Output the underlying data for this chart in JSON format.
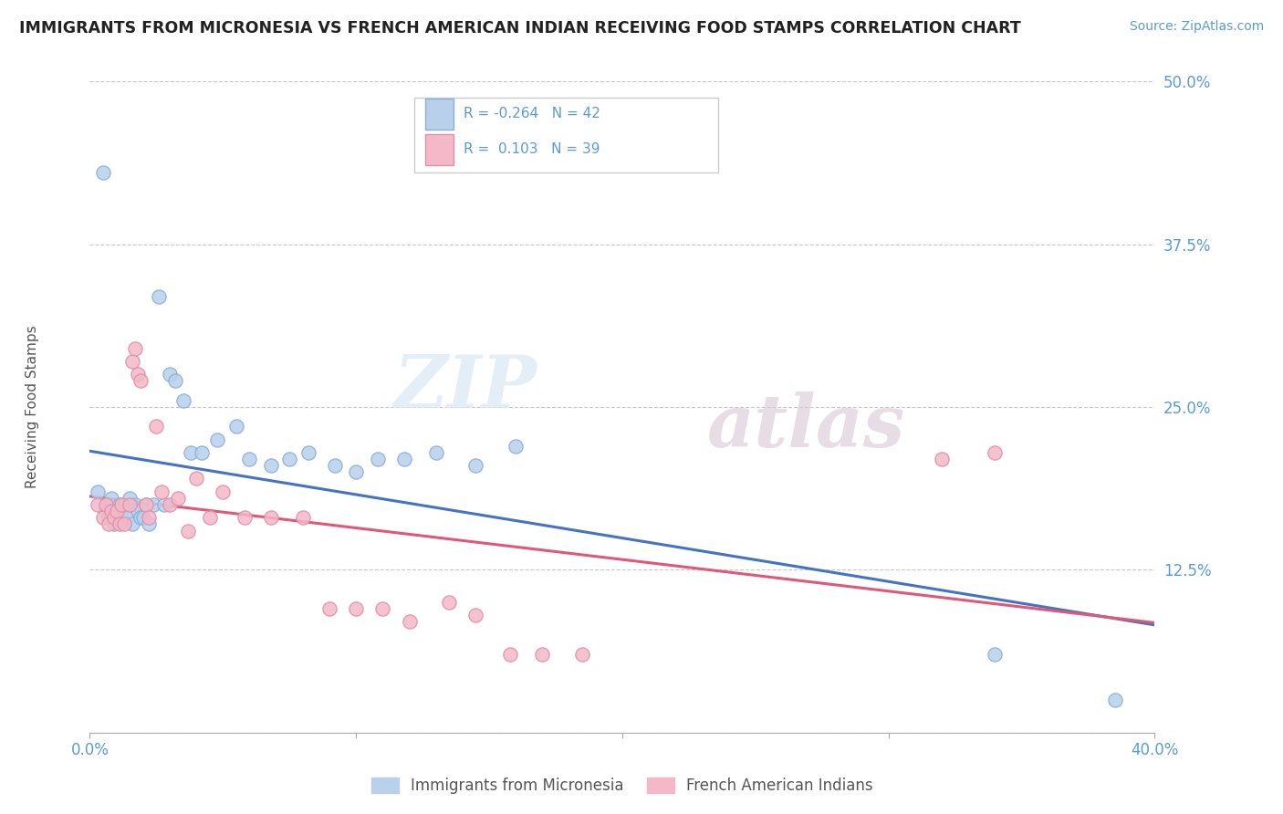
{
  "title": "IMMIGRANTS FROM MICRONESIA VS FRENCH AMERICAN INDIAN RECEIVING FOOD STAMPS CORRELATION CHART",
  "source": "Source: ZipAtlas.com",
  "ylabel": "Receiving Food Stamps",
  "xlim": [
    0.0,
    0.4
  ],
  "ylim": [
    0.0,
    0.5
  ],
  "yticks": [
    0.0,
    0.125,
    0.25,
    0.375,
    0.5
  ],
  "ytick_labels": [
    "",
    "12.5%",
    "25.0%",
    "37.5%",
    "50.0%"
  ],
  "xticks": [
    0.0,
    0.1,
    0.2,
    0.3,
    0.4
  ],
  "xtick_labels": [
    "0.0%",
    "",
    "",
    "",
    "40.0%"
  ],
  "r_micronesia": -0.264,
  "n_micronesia": 42,
  "r_french_indian": 0.103,
  "n_french_indian": 39,
  "color_micronesia_fill": "#b8d0ea",
  "color_micronesia_edge": "#8ab0d8",
  "color_french_indian_fill": "#f4b8c8",
  "color_french_indian_edge": "#e090a8",
  "line_color_micronesia": "#4472c4",
  "line_color_french_indian": "#e05878",
  "watermark_zip": "ZIP",
  "watermark_atlas": "atlas",
  "background_color": "#ffffff",
  "grid_color": "#c8c8c8",
  "tick_color": "#5b9bd5",
  "scatter_micronesia_x": [
    0.003,
    0.005,
    0.006,
    0.007,
    0.008,
    0.009,
    0.01,
    0.011,
    0.012,
    0.013,
    0.014,
    0.015,
    0.016,
    0.017,
    0.018,
    0.019,
    0.02,
    0.021,
    0.022,
    0.024,
    0.026,
    0.028,
    0.03,
    0.032,
    0.035,
    0.038,
    0.042,
    0.048,
    0.055,
    0.06,
    0.068,
    0.075,
    0.082,
    0.092,
    0.1,
    0.108,
    0.118,
    0.13,
    0.145,
    0.16,
    0.34,
    0.385
  ],
  "scatter_micronesia_y": [
    0.185,
    0.43,
    0.17,
    0.165,
    0.18,
    0.16,
    0.17,
    0.175,
    0.165,
    0.175,
    0.165,
    0.18,
    0.16,
    0.175,
    0.17,
    0.165,
    0.165,
    0.175,
    0.16,
    0.175,
    0.335,
    0.175,
    0.275,
    0.27,
    0.255,
    0.215,
    0.215,
    0.225,
    0.235,
    0.21,
    0.205,
    0.21,
    0.215,
    0.205,
    0.2,
    0.21,
    0.21,
    0.215,
    0.205,
    0.22,
    0.06,
    0.025
  ],
  "scatter_french_indian_x": [
    0.003,
    0.005,
    0.006,
    0.007,
    0.008,
    0.009,
    0.01,
    0.011,
    0.012,
    0.013,
    0.015,
    0.016,
    0.017,
    0.018,
    0.019,
    0.021,
    0.022,
    0.025,
    0.027,
    0.03,
    0.033,
    0.037,
    0.04,
    0.045,
    0.05,
    0.058,
    0.068,
    0.08,
    0.09,
    0.1,
    0.11,
    0.12,
    0.135,
    0.145,
    0.158,
    0.17,
    0.185,
    0.32,
    0.34
  ],
  "scatter_french_indian_y": [
    0.175,
    0.165,
    0.175,
    0.16,
    0.17,
    0.165,
    0.17,
    0.16,
    0.175,
    0.16,
    0.175,
    0.285,
    0.295,
    0.275,
    0.27,
    0.175,
    0.165,
    0.235,
    0.185,
    0.175,
    0.18,
    0.155,
    0.195,
    0.165,
    0.185,
    0.165,
    0.165,
    0.165,
    0.095,
    0.095,
    0.095,
    0.085,
    0.1,
    0.09,
    0.06,
    0.06,
    0.06,
    0.21,
    0.215
  ]
}
